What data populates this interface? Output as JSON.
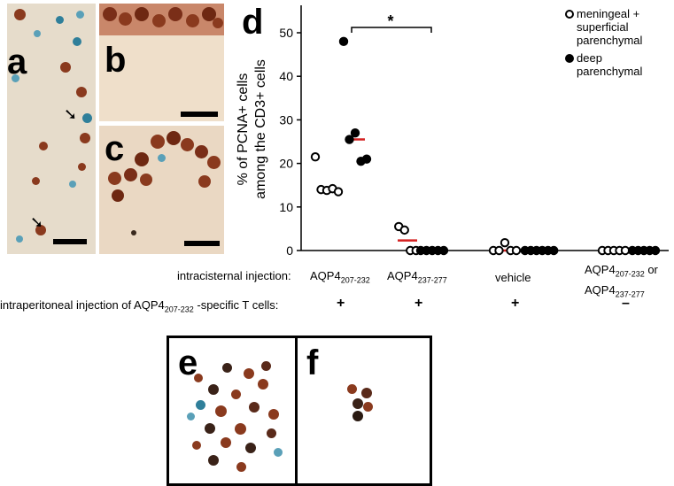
{
  "panels": {
    "a": "a",
    "b": "b",
    "c": "c",
    "d": "d",
    "e": "e",
    "f": "f"
  },
  "chart_data": {
    "type": "scatter",
    "ylabel_line1": "% of PCNA+ cells",
    "ylabel_line2": "among the CD3+ cells",
    "ylim": [
      0,
      50
    ],
    "yticks": [
      "0",
      "10",
      "20",
      "30",
      "40",
      "50"
    ],
    "legend_position": "top-right",
    "significance_label": "*",
    "legend": [
      {
        "marker": "open",
        "lines": [
          "meningeal +",
          "superficial",
          "parenchymal"
        ]
      },
      {
        "marker": "filled",
        "lines": [
          "deep",
          "parenchymal"
        ]
      }
    ],
    "groups": [
      {
        "open_values": [
          21.5,
          14.0,
          13.8,
          14.2,
          13.5
        ],
        "open_median": 14,
        "filled_values": [
          48,
          25.5,
          27,
          20.5,
          21
        ],
        "filled_median": 25.5
      },
      {
        "open_values": [
          5.5,
          4.7,
          0,
          0
        ],
        "open_median": 2.3,
        "filled_values": [
          0,
          0,
          0,
          0,
          0
        ],
        "filled_median": 0
      },
      {
        "open_values": [
          0,
          0,
          1.8,
          0,
          0
        ],
        "open_median": 0,
        "filled_values": [
          0,
          0,
          0,
          0,
          0,
          0
        ],
        "filled_median": 0
      },
      {
        "open_values": [
          0,
          0,
          0,
          0,
          0
        ],
        "open_median": 0,
        "filled_values": [
          0,
          0,
          0,
          0,
          0
        ],
        "filled_median": 0
      }
    ],
    "median_color": "#d42020"
  },
  "rows": {
    "intracisternal_label": "intracisternal injection:",
    "intraperitoneal_label_pre": "intraperitoneal injection of AQP4",
    "intraperitoneal_label_sub": "207-232",
    "intraperitoneal_label_post": " -specific T cells:",
    "conditions": [
      {
        "main": "AQP4",
        "sub": "207-232",
        "main2": "",
        "sub2": "",
        "tail": "",
        "ip": "+"
      },
      {
        "main": "AQP4",
        "sub": "237-277",
        "main2": "",
        "sub2": "",
        "tail": "",
        "ip": "+"
      },
      {
        "main": "vehicle",
        "sub": "",
        "main2": "",
        "sub2": "",
        "tail": "",
        "ip": "+"
      },
      {
        "main": "AQP4",
        "sub": "207-232",
        "tail": " or",
        "main2": "AQP4",
        "sub2": "237-277",
        "ip": "–"
      }
    ]
  },
  "colors": {
    "stain_brown": "#8a3a1e",
    "stain_blue": "#2f7f9a",
    "tissue_bg": "#eadbc6"
  }
}
